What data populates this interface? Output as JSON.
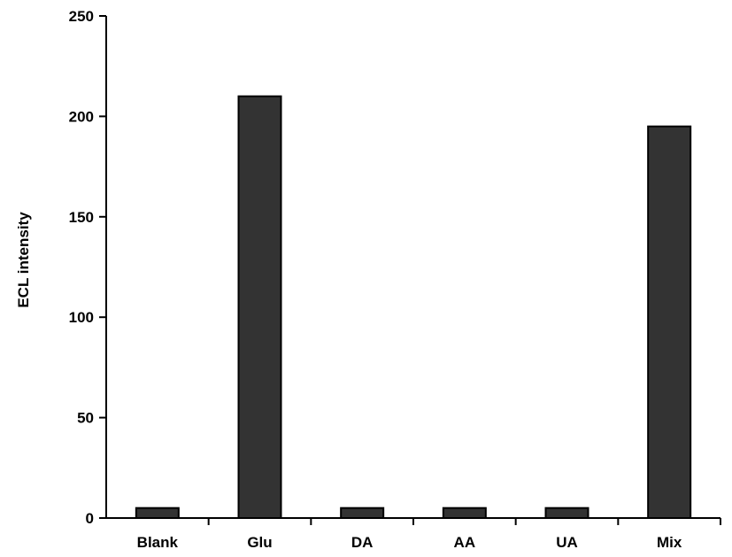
{
  "chart_data": {
    "type": "bar",
    "title": "",
    "xlabel": "",
    "ylabel": "ECL intensity",
    "categories": [
      "Blank",
      "Glu",
      "DA",
      "AA",
      "UA",
      "Mix"
    ],
    "values": [
      5,
      210,
      5,
      5,
      5,
      195
    ],
    "ylim": [
      0,
      250
    ],
    "yticks": [
      0,
      50,
      100,
      150,
      200,
      250
    ],
    "grid": false,
    "legend": "none",
    "bar_color": "#333333",
    "bar_stroke": "#000000"
  }
}
